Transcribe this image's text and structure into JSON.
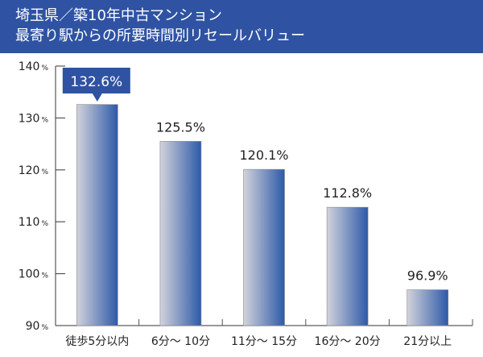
{
  "title": {
    "line1": "埼玉県／築10年中古マンション",
    "line2": "最寄り駅からの所要時間別リセールバリュー"
  },
  "colors": {
    "header": "#2f53a2",
    "bar_light": "#d2d3db",
    "bar_dark": "#2e5aa8",
    "highlight_label": "#2f53a2"
  },
  "chart_data": {
    "type": "bar",
    "title": "埼玉県／築10年中古マンション 最寄り駅からの所要時間別リセールバリュー",
    "categories": [
      "徒歩5分以内",
      "6分～ 10分",
      "11分～ 15分",
      "16分～ 20分",
      "21分以上"
    ],
    "values": [
      132.6,
      125.5,
      120.1,
      112.8,
      96.9
    ],
    "value_labels": [
      "132.6%",
      "125.5%",
      "120.1%",
      "112.8%",
      "96.9%"
    ],
    "highlighted_index": 0,
    "ylim": [
      90,
      140
    ],
    "yticks": [
      90,
      100,
      110,
      120,
      130,
      140
    ],
    "ytick_labels": [
      "90",
      "100",
      "110",
      "120",
      "130",
      "140"
    ],
    "ytick_unit": "%",
    "xlabel": "",
    "ylabel": "",
    "grid": false
  }
}
